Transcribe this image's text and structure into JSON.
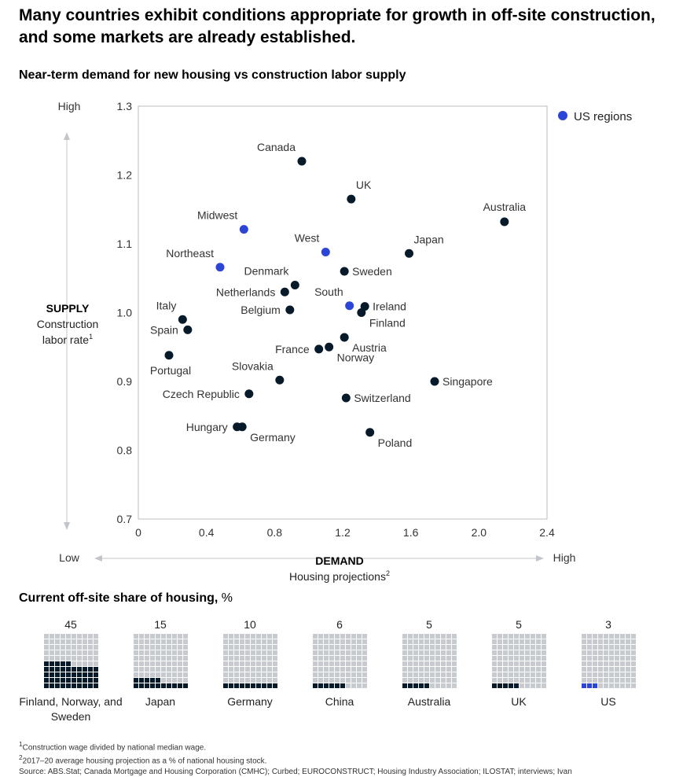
{
  "headline": "Many countries exhibit conditions appropriate for growth in off-site construction, and some markets are already established.",
  "subhead": "Near-term demand for new housing vs construction labor supply",
  "chart_data": {
    "type": "scatter",
    "title": "Near-term demand for new housing vs construction labor supply",
    "xlabel_main": "DEMAND",
    "xlabel_sub": "Housing projections",
    "xlabel_sup": "2",
    "ylabel_main": "SUPPLY",
    "ylabel_sub1": "Construction",
    "ylabel_sub2": "labor rate",
    "ylabel_sup": "1",
    "x_low": "Low",
    "x_high": "High",
    "y_low": "Low",
    "y_high": "High",
    "xlim": [
      0,
      2.4
    ],
    "ylim": [
      0.7,
      1.3
    ],
    "xticks": [
      "0",
      "0.4",
      "0.8",
      "1.2",
      "1.6",
      "2.0",
      "2.4"
    ],
    "yticks": [
      "0.7",
      "0.8",
      "0.9",
      "1.0",
      "1.1",
      "1.2",
      "1.3"
    ],
    "grid": false,
    "legend": {
      "label": "US regions",
      "placement": "top-right",
      "color": "#2b45d6"
    },
    "colors": {
      "country": "#061a2a",
      "us_region": "#2b45d6"
    },
    "points": [
      {
        "name": "Canada",
        "x": 0.96,
        "y": 1.22,
        "us": false,
        "label_pos": "above-left"
      },
      {
        "name": "UK",
        "x": 1.25,
        "y": 1.165,
        "us": false,
        "label_pos": "above-right"
      },
      {
        "name": "Australia",
        "x": 2.15,
        "y": 1.132,
        "us": false,
        "label_pos": "above"
      },
      {
        "name": "Midwest",
        "x": 0.62,
        "y": 1.121,
        "us": true,
        "label_pos": "above-left"
      },
      {
        "name": "West",
        "x": 1.1,
        "y": 1.088,
        "us": true,
        "label_pos": "above-left"
      },
      {
        "name": "Japan",
        "x": 1.59,
        "y": 1.086,
        "us": false,
        "label_pos": "above-right"
      },
      {
        "name": "Northeast",
        "x": 0.48,
        "y": 1.066,
        "us": true,
        "label_pos": "above-left"
      },
      {
        "name": "Sweden",
        "x": 1.21,
        "y": 1.06,
        "us": false,
        "label_pos": "right"
      },
      {
        "name": "Denmark",
        "x": 0.92,
        "y": 1.04,
        "us": false,
        "label_pos": "above-left"
      },
      {
        "name": "Netherlands",
        "x": 0.86,
        "y": 1.03,
        "us": false,
        "label_pos": "left"
      },
      {
        "name": "South",
        "x": 1.24,
        "y": 1.01,
        "us": true,
        "label_pos": "above-left"
      },
      {
        "name": "Ireland",
        "x": 1.33,
        "y": 1.009,
        "us": false,
        "label_pos": "right"
      },
      {
        "name": "Belgium",
        "x": 0.89,
        "y": 1.004,
        "us": false,
        "label_pos": "left"
      },
      {
        "name": "Finland",
        "x": 1.31,
        "y": 1.0,
        "us": false,
        "label_pos": "below-right"
      },
      {
        "name": "Italy",
        "x": 0.26,
        "y": 0.99,
        "us": false,
        "label_pos": "above-left"
      },
      {
        "name": "Spain",
        "x": 0.29,
        "y": 0.975,
        "us": false,
        "label_pos": "left"
      },
      {
        "name": "Austria",
        "x": 1.21,
        "y": 0.964,
        "us": false,
        "label_pos": "below-right"
      },
      {
        "name": "Norway",
        "x": 1.12,
        "y": 0.95,
        "us": false,
        "label_pos": "below-right"
      },
      {
        "name": "France",
        "x": 1.06,
        "y": 0.947,
        "us": false,
        "label_pos": "left"
      },
      {
        "name": "Portugal",
        "x": 0.18,
        "y": 0.938,
        "us": false,
        "label_pos": "below"
      },
      {
        "name": "Slovakia",
        "x": 0.83,
        "y": 0.902,
        "us": false,
        "label_pos": "above-left"
      },
      {
        "name": "Singapore",
        "x": 1.74,
        "y": 0.9,
        "us": false,
        "label_pos": "right"
      },
      {
        "name": "Czech Republic",
        "x": 0.65,
        "y": 0.882,
        "us": false,
        "label_pos": "left"
      },
      {
        "name": "Switzerland",
        "x": 1.22,
        "y": 0.876,
        "us": false,
        "label_pos": "right"
      },
      {
        "name": "Hungary",
        "x": 0.58,
        "y": 0.834,
        "us": false,
        "label_pos": "left"
      },
      {
        "name": "Germany",
        "x": 0.61,
        "y": 0.834,
        "us": false,
        "label_pos": "below-right"
      },
      {
        "name": "Poland",
        "x": 1.36,
        "y": 0.826,
        "us": false,
        "label_pos": "below-right"
      }
    ]
  },
  "share": {
    "title_bold": "Current off-site share of housing,",
    "title_unit": " %",
    "items": [
      {
        "value": "45",
        "label": "Finland, Norway, and Sweden",
        "pct": 45,
        "us": false
      },
      {
        "value": "15",
        "label": "Japan",
        "pct": 15,
        "us": false
      },
      {
        "value": "10",
        "label": "Germany",
        "pct": 10,
        "us": false
      },
      {
        "value": "6",
        "label": "China",
        "pct": 6,
        "us": false
      },
      {
        "value": "5",
        "label": "Australia",
        "pct": 5,
        "us": false
      },
      {
        "value": "5",
        "label": "UK",
        "pct": 5,
        "us": false
      },
      {
        "value": "3",
        "label": "US",
        "pct": 3,
        "us": true
      }
    ]
  },
  "footnotes": {
    "note1_sup": "1",
    "note1": "Construction wage divided by national median wage.",
    "note2_sup": "2",
    "note2": "2017–20 average housing projection as a % of national housing stock.",
    "source": "Source: ABS.Stat; Canada Mortgage and Housing Corporation (CMHC); Curbed; EUROCONSTRUCT; Housing Industry Association; ILOSTAT; interviews; Ivan"
  }
}
